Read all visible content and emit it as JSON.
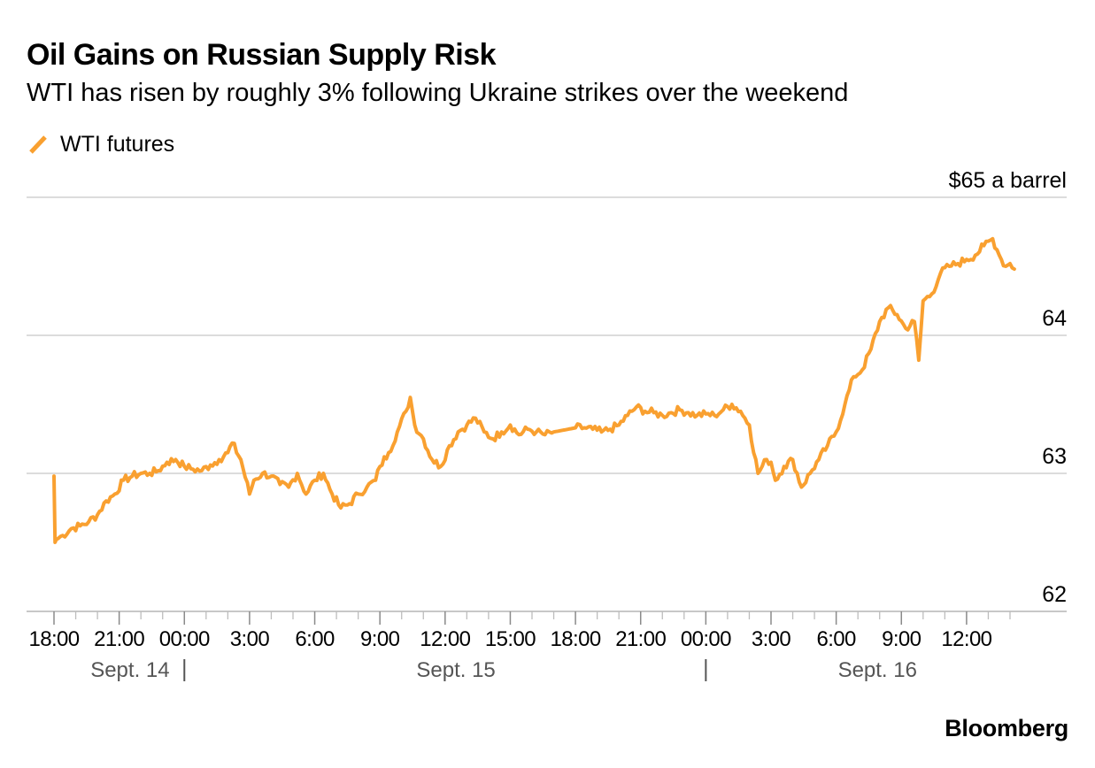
{
  "chart_data": {
    "type": "line",
    "title": "Oil Gains on Russian Supply Risk",
    "subtitle": "WTI has risen by roughly 3% following Ukraine strikes over the weekend",
    "unit_label": "$65 a barrel",
    "source": "Bloomberg",
    "legend": [
      {
        "name": "WTI futures",
        "color": "#f9a030"
      }
    ],
    "ylim": [
      62,
      65
    ],
    "yticks": [
      {
        "value": 65,
        "label": "$65 a barrel"
      },
      {
        "value": 64,
        "label": "64"
      },
      {
        "value": 63,
        "label": "63"
      },
      {
        "value": 62,
        "label": "62"
      }
    ],
    "xlim": [
      0,
      44
    ],
    "x_unit": "hours since Sept. 14 18:00",
    "xticks": [
      {
        "x": 0,
        "label": "18:00"
      },
      {
        "x": 3,
        "label": "21:00"
      },
      {
        "x": 6,
        "label": "00:00"
      },
      {
        "x": 9,
        "label": "3:00"
      },
      {
        "x": 12,
        "label": "6:00"
      },
      {
        "x": 15,
        "label": "9:00"
      },
      {
        "x": 18,
        "label": "12:00"
      },
      {
        "x": 21,
        "label": "15:00"
      },
      {
        "x": 24,
        "label": "18:00"
      },
      {
        "x": 27,
        "label": "21:00"
      },
      {
        "x": 30,
        "label": "00:00"
      },
      {
        "x": 33,
        "label": "3:00"
      },
      {
        "x": 36,
        "label": "6:00"
      },
      {
        "x": 39,
        "label": "9:00"
      },
      {
        "x": 42,
        "label": "12:00"
      }
    ],
    "date_labels": [
      {
        "x": 3.5,
        "label": "Sept. 14"
      },
      {
        "x": 18.5,
        "label": "Sept. 15"
      },
      {
        "x": 37.9,
        "label": "Sept. 16"
      }
    ],
    "date_separators": [
      6,
      30
    ],
    "series": [
      {
        "name": "WTI futures",
        "color": "#f9a030",
        "x": [
          0,
          0.05,
          0.1,
          0.4,
          0.8,
          1.2,
          1.6,
          2.0,
          2.4,
          2.8,
          3.2,
          3.6,
          4.0,
          4.4,
          4.8,
          5.2,
          5.6,
          6.0,
          6.4,
          6.8,
          7.2,
          7.6,
          8.0,
          8.2,
          8.6,
          9.0,
          9.2,
          9.6,
          10.0,
          10.4,
          10.8,
          11.2,
          11.6,
          12.0,
          12.4,
          12.8,
          13.2,
          13.6,
          14.0,
          14.4,
          14.8,
          15.0,
          15.4,
          15.8,
          16.2,
          16.4,
          16.6,
          17.0,
          17.4,
          17.8,
          18.2,
          18.6,
          19.0,
          19.4,
          19.8,
          20.2,
          20.6,
          21.0,
          21.4,
          21.8,
          22.2,
          22.6,
          23.0,
          24.0,
          24.4,
          24.8,
          25.2,
          25.6,
          26.0,
          26.4,
          26.8,
          27.2,
          27.6,
          28.0,
          28.4,
          28.8,
          29.2,
          29.6,
          30.0,
          30.4,
          30.8,
          31.2,
          31.6,
          32.0,
          32.4,
          32.8,
          33.0,
          33.2,
          33.6,
          34.0,
          34.4,
          34.8,
          35.2,
          35.6,
          36.0,
          36.4,
          36.8,
          37.2,
          37.6,
          38.0,
          38.4,
          38.8,
          39.2,
          39.6,
          39.8,
          40.0,
          40.4,
          40.8,
          41.2,
          41.6,
          42.0,
          42.4,
          42.8,
          43.2,
          43.4,
          43.6,
          43.8,
          44.0,
          44.2
        ],
        "values": [
          62.98,
          62.5,
          62.52,
          62.55,
          62.6,
          62.62,
          62.65,
          62.7,
          62.8,
          62.85,
          62.95,
          62.98,
          63.0,
          63.0,
          63.02,
          63.08,
          63.1,
          63.05,
          63.03,
          63.02,
          63.06,
          63.1,
          63.15,
          63.22,
          63.1,
          62.85,
          62.95,
          63.0,
          62.98,
          62.92,
          62.9,
          63.0,
          62.85,
          62.95,
          63.0,
          62.85,
          62.75,
          62.78,
          62.85,
          62.9,
          62.95,
          63.05,
          63.15,
          63.3,
          63.45,
          63.55,
          63.35,
          63.25,
          63.1,
          63.05,
          63.2,
          63.3,
          63.35,
          63.4,
          63.3,
          63.25,
          63.3,
          63.35,
          63.28,
          63.32,
          63.3,
          63.28,
          63.3,
          63.33,
          63.33,
          63.32,
          63.3,
          63.32,
          63.35,
          63.42,
          63.48,
          63.45,
          63.44,
          63.42,
          63.44,
          63.46,
          63.44,
          63.42,
          63.43,
          63.42,
          63.46,
          63.5,
          63.45,
          63.35,
          63.0,
          63.1,
          63.08,
          62.95,
          63.05,
          63.1,
          62.9,
          63.0,
          63.1,
          63.2,
          63.3,
          63.5,
          63.7,
          63.75,
          63.9,
          64.1,
          64.2,
          64.15,
          64.05,
          64.1,
          63.82,
          64.25,
          64.3,
          64.45,
          64.5,
          64.52,
          64.55,
          64.58,
          64.65,
          64.7,
          64.62,
          64.55,
          64.5,
          64.52,
          64.48
        ]
      }
    ]
  }
}
